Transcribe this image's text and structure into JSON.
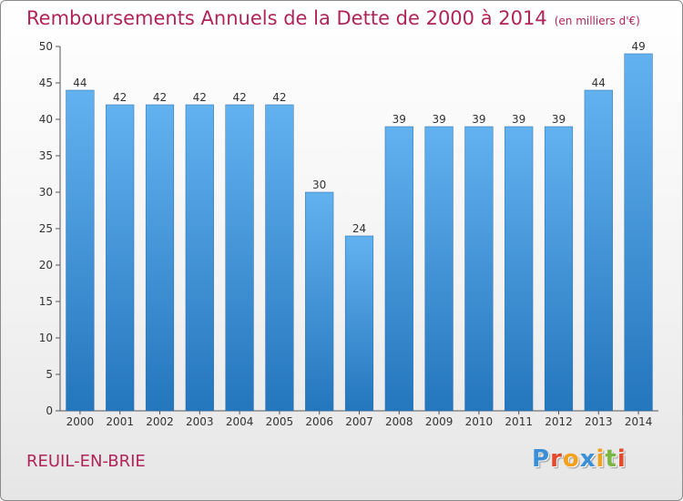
{
  "chart_data": {
    "type": "bar",
    "title": "Remboursements Annuels de la Dette de 2000 à 2014",
    "subtitle": "(en milliers d'€)",
    "categories": [
      "2000",
      "2001",
      "2002",
      "2003",
      "2004",
      "2005",
      "2006",
      "2007",
      "2008",
      "2009",
      "2010",
      "2011",
      "2012",
      "2013",
      "2014"
    ],
    "values": [
      44,
      42,
      42,
      42,
      42,
      42,
      30,
      24,
      39,
      39,
      39,
      39,
      39,
      44,
      49
    ],
    "ylim": [
      0,
      50
    ],
    "yticks": [
      0,
      5,
      10,
      15,
      20,
      25,
      30,
      35,
      40,
      45,
      50
    ],
    "grid": false,
    "bar_color": "#4a9de0"
  },
  "footer": {
    "commune": "REUIL-EN-BRIE",
    "logo_letters": [
      "P",
      "r",
      "o",
      "x",
      "i",
      "t",
      "i"
    ],
    "logo_colors": [
      "#3a8fd6",
      "#e24a2b",
      "#f3a01b",
      "#3a8fd6",
      "#f3a01b",
      "#7bb642",
      "#e24a2b"
    ]
  }
}
